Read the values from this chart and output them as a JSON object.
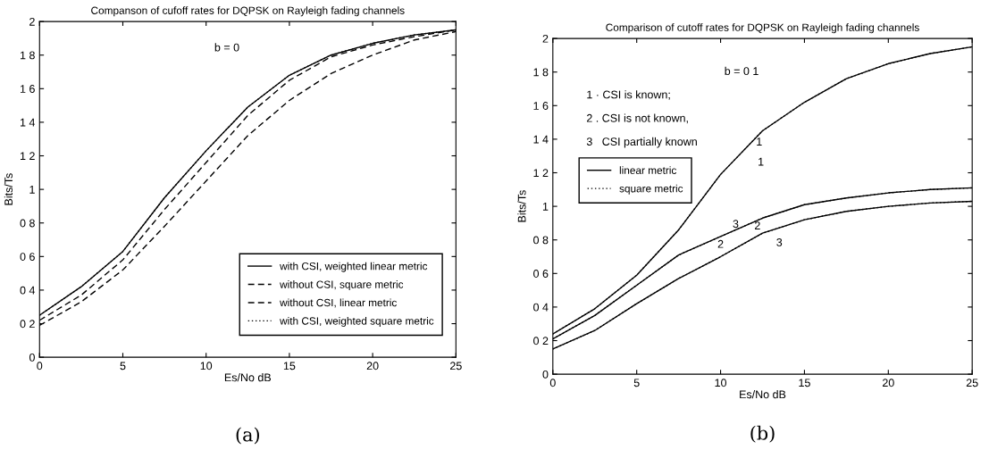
{
  "chart_data": [
    {
      "type": "line",
      "title": "Companson of cufoff rates for DQPSK on Rayleigh fading channels",
      "xlabel": "Es/No dB",
      "ylabel": "Bits/Ts",
      "x": [
        0,
        2.5,
        5,
        7.5,
        10,
        12.5,
        15,
        17.5,
        20,
        22.5,
        25
      ],
      "series": [
        {
          "name": "with CSI, weighted linear metric",
          "color": "#000000",
          "line_style": "solid",
          "values": [
            0.25,
            0.42,
            0.63,
            0.95,
            1.23,
            1.49,
            1.68,
            1.8,
            1.87,
            1.92,
            1.95
          ]
        },
        {
          "name": "without CSI, square metric",
          "color": "#000000",
          "line_style": "dashed",
          "values": [
            0.22,
            0.37,
            0.58,
            0.88,
            1.16,
            1.44,
            1.65,
            1.79,
            1.86,
            1.91,
            1.95
          ]
        },
        {
          "name": "without CSI, linear metric",
          "color": "#000000",
          "line_style": "dashed",
          "values": [
            0.19,
            0.33,
            0.52,
            0.78,
            1.05,
            1.32,
            1.53,
            1.69,
            1.8,
            1.89,
            1.94
          ]
        },
        {
          "name": "with CSI, weighted square metric",
          "color": "#000000",
          "line_style": "dotted",
          "values": [
            0.25,
            0.42,
            0.63,
            0.95,
            1.23,
            1.49,
            1.68,
            1.8,
            1.87,
            1.92,
            1.95
          ]
        }
      ],
      "xlim": [
        0,
        25
      ],
      "xticks": [
        0,
        5,
        10,
        15,
        20,
        25
      ],
      "ylim": [
        0,
        2
      ],
      "yticks": [
        0,
        {
          "value": 0.2,
          "label": "0 2"
        },
        {
          "value": 0.4,
          "label": "0 4"
        },
        {
          "value": 0.6,
          "label": "0 6"
        },
        {
          "value": 0.8,
          "label": "0 8"
        },
        1,
        {
          "value": 1.2,
          "label": "1 2"
        },
        {
          "value": 1.4,
          "label": "1 4"
        },
        {
          "value": 1.6,
          "label": "1 6"
        },
        {
          "value": 1.8,
          "label": "1 8"
        },
        2
      ],
      "legend": "bottom right",
      "marker": "none",
      "annotations": [
        "b = 0",
        "(a)"
      ]
    },
    {
      "type": "line",
      "title": "Comparison of cutoff rates for DQPSK on Rayleigh fading channels",
      "xlabel": "Es/No dB",
      "ylabel": "Bits/Ts",
      "x": [
        0,
        2.5,
        5,
        7.5,
        10,
        12.5,
        15,
        17.5,
        20,
        22.5,
        25
      ],
      "series": [
        {
          "name": "linear metric",
          "color": "#000000",
          "line_style": "solid",
          "values": [
            0.24,
            0.39,
            0.59,
            0.86,
            1.19,
            1.45,
            1.62,
            1.76,
            1.85,
            1.91,
            1.95
          ]
        },
        {
          "color": "#000000",
          "line_style": "solid",
          "values": [
            0.21,
            0.35,
            0.53,
            0.71,
            0.82,
            0.93,
            1.01,
            1.05,
            1.08,
            1.1,
            1.11
          ]
        },
        {
          "color": "#000000",
          "line_style": "solid",
          "values": [
            0.15,
            0.26,
            0.42,
            0.57,
            0.7,
            0.84,
            0.92,
            0.97,
            1.0,
            1.02,
            1.03
          ]
        },
        {
          "name": "square metric",
          "color": "#000000",
          "line_style": "dotted",
          "values": [
            0.24,
            0.39,
            0.59,
            0.86,
            1.19,
            1.45,
            1.62,
            1.76,
            1.85,
            1.91,
            1.95
          ]
        },
        {
          "color": "#000000",
          "line_style": "dotted",
          "values": [
            0.21,
            0.35,
            0.53,
            0.71,
            0.82,
            0.93,
            1.01,
            1.05,
            1.08,
            1.1,
            1.11
          ]
        },
        {
          "color": "#000000",
          "line_style": "dotted",
          "values": [
            0.15,
            0.26,
            0.42,
            0.57,
            0.7,
            0.84,
            0.92,
            0.97,
            1.0,
            1.02,
            1.03
          ]
        }
      ],
      "xlim": [
        0,
        25
      ],
      "xticks": [
        0,
        5,
        10,
        15,
        20,
        25
      ],
      "ylim": [
        0,
        2
      ],
      "yticks": [
        0,
        {
          "value": 0.2,
          "label": "0 2"
        },
        {
          "value": 0.4,
          "label": "0 4"
        },
        {
          "value": 0.6,
          "label": "0 6"
        },
        {
          "value": 0.8,
          "label": "0 8"
        },
        1,
        {
          "value": 1.2,
          "label": "1 2"
        },
        {
          "value": 1.4,
          "label": "1 4"
        },
        {
          "value": 1.6,
          "label": "1 6"
        },
        {
          "value": 1.8,
          "label": "1 8"
        },
        2
      ],
      "legend": "top left",
      "marker": "none",
      "annotations": [
        "b = 0 1",
        "1 · CSI is known;",
        "2 . CSI is not known,",
        "3   CSI partially known",
        "1",
        "1",
        "3",
        "2",
        "2",
        "3",
        "(b)"
      ]
    }
  ]
}
